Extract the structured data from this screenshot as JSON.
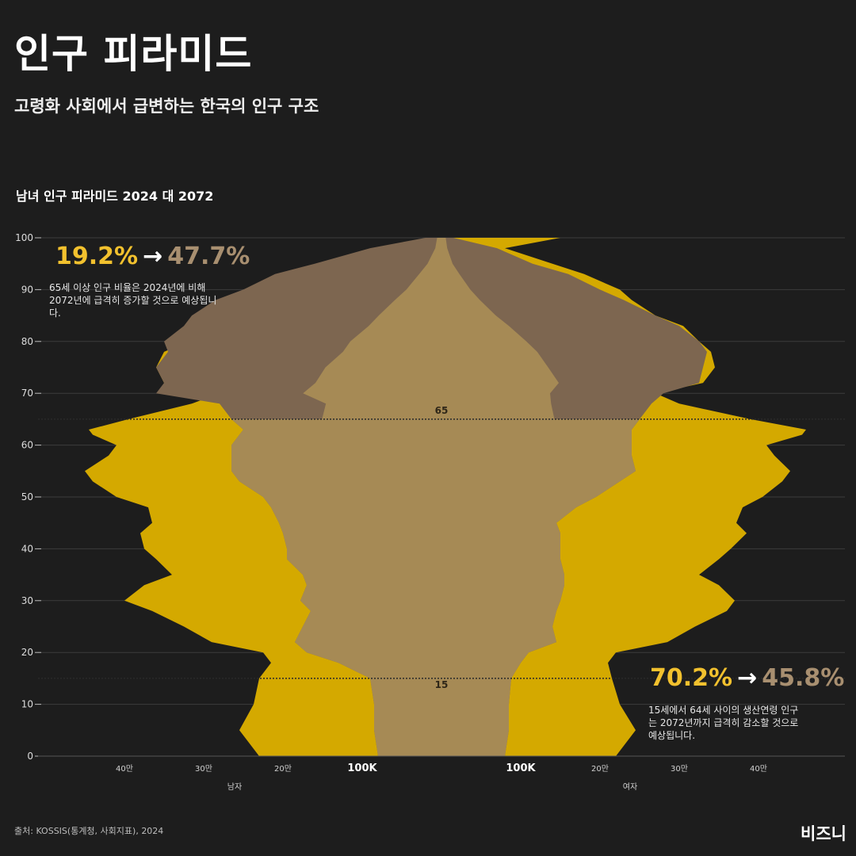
{
  "header": {
    "title": "인구 피라미드",
    "subtitle": "고령화 사회에서 급변하는 한국의 인구 구조"
  },
  "annotations": {
    "senior": {
      "from": "19.2%",
      "arrow": "→",
      "to": "47.7%",
      "note": "65세 이상 인구 비율은 2024년에 비해 2072년에 급격히 증가할 것으로 예상됩니다."
    },
    "working": {
      "from": "70.2%",
      "arrow": "→",
      "to": "45.8%",
      "note": "15세에서 64세 사이의 생산연령 인구는 2072년까지 급격히 감소할 것으로 예상됩니다."
    }
  },
  "footer": {
    "source": "출처: KOSSIS(통계청, 사회지표), 2024",
    "brand": "비즈니"
  },
  "colors": {
    "background": "#1d1d1d",
    "pop_2024": "#d4a900",
    "pop_2072": "#a68a55",
    "pop_2072_senior": "#7d6650",
    "highlight_from": "#f2c12e",
    "highlight_to": "#a88f70"
  },
  "chart_data": {
    "type": "area",
    "title": "남녀 인구 피라미드 2024 대 2072",
    "y_label": "",
    "ylim": [
      0,
      100
    ],
    "y_ticks": [
      0,
      10,
      20,
      30,
      40,
      50,
      60,
      70,
      80,
      90,
      100
    ],
    "x_ticks_left": [
      "40만",
      "30만",
      "20만",
      "100K"
    ],
    "x_ticks_right": [
      "100K",
      "20만",
      "30만",
      "40만"
    ],
    "x_tick_values": [
      400000,
      300000,
      200000,
      100000
    ],
    "xlim": [
      0,
      450000
    ],
    "side_labels": {
      "male": "남자",
      "female": "여자"
    },
    "reference_lines": [
      {
        "age": 65,
        "label": "65"
      },
      {
        "age": 15,
        "label": "15"
      }
    ],
    "ages": [
      0,
      5,
      10,
      15,
      18,
      20,
      22,
      25,
      28,
      30,
      33,
      35,
      38,
      40,
      43,
      45,
      48,
      50,
      53,
      55,
      58,
      60,
      62,
      63,
      65,
      68,
      70,
      72,
      75,
      78,
      80,
      83,
      85,
      88,
      90,
      93,
      95,
      98,
      100
    ],
    "series": [
      {
        "name": "2024",
        "male": [
          230000,
          255000,
          237000,
          230000,
          215000,
          225000,
          290000,
          325000,
          365000,
          400000,
          375000,
          340000,
          360000,
          375000,
          380000,
          365000,
          370000,
          410000,
          440000,
          450000,
          420000,
          410000,
          440000,
          445000,
          395000,
          315000,
          280000,
          350000,
          360000,
          350000,
          320000,
          265000,
          215000,
          180000,
          160000,
          110000,
          80000,
          45000,
          5000
        ],
        "female": [
          220000,
          245000,
          225000,
          215000,
          210000,
          220000,
          285000,
          320000,
          360000,
          370000,
          350000,
          325000,
          350000,
          365000,
          385000,
          372000,
          380000,
          405000,
          430000,
          440000,
          420000,
          410000,
          455000,
          460000,
          390000,
          300000,
          270000,
          330000,
          345000,
          340000,
          325000,
          305000,
          270000,
          240000,
          225000,
          180000,
          140000,
          80000,
          150000
        ]
      },
      {
        "name": "2072",
        "male": [
          80000,
          85000,
          85000,
          90000,
          130000,
          170000,
          185000,
          175000,
          165000,
          178000,
          170000,
          175000,
          195000,
          195000,
          200000,
          205000,
          215000,
          225000,
          255000,
          265000,
          265000,
          265000,
          255000,
          250000,
          265000,
          280000,
          360000,
          350000,
          360000,
          345000,
          350000,
          325000,
          315000,
          285000,
          250000,
          210000,
          160000,
          90000,
          20000
        ],
        "female": [
          80000,
          85000,
          85000,
          88000,
          100000,
          110000,
          145000,
          140000,
          145000,
          150000,
          155000,
          155000,
          150000,
          150000,
          150000,
          145000,
          170000,
          195000,
          225000,
          245000,
          240000,
          240000,
          240000,
          240000,
          250000,
          265000,
          280000,
          325000,
          330000,
          335000,
          325000,
          300000,
          270000,
          230000,
          200000,
          160000,
          115000,
          70000,
          15000
        ]
      }
    ]
  }
}
